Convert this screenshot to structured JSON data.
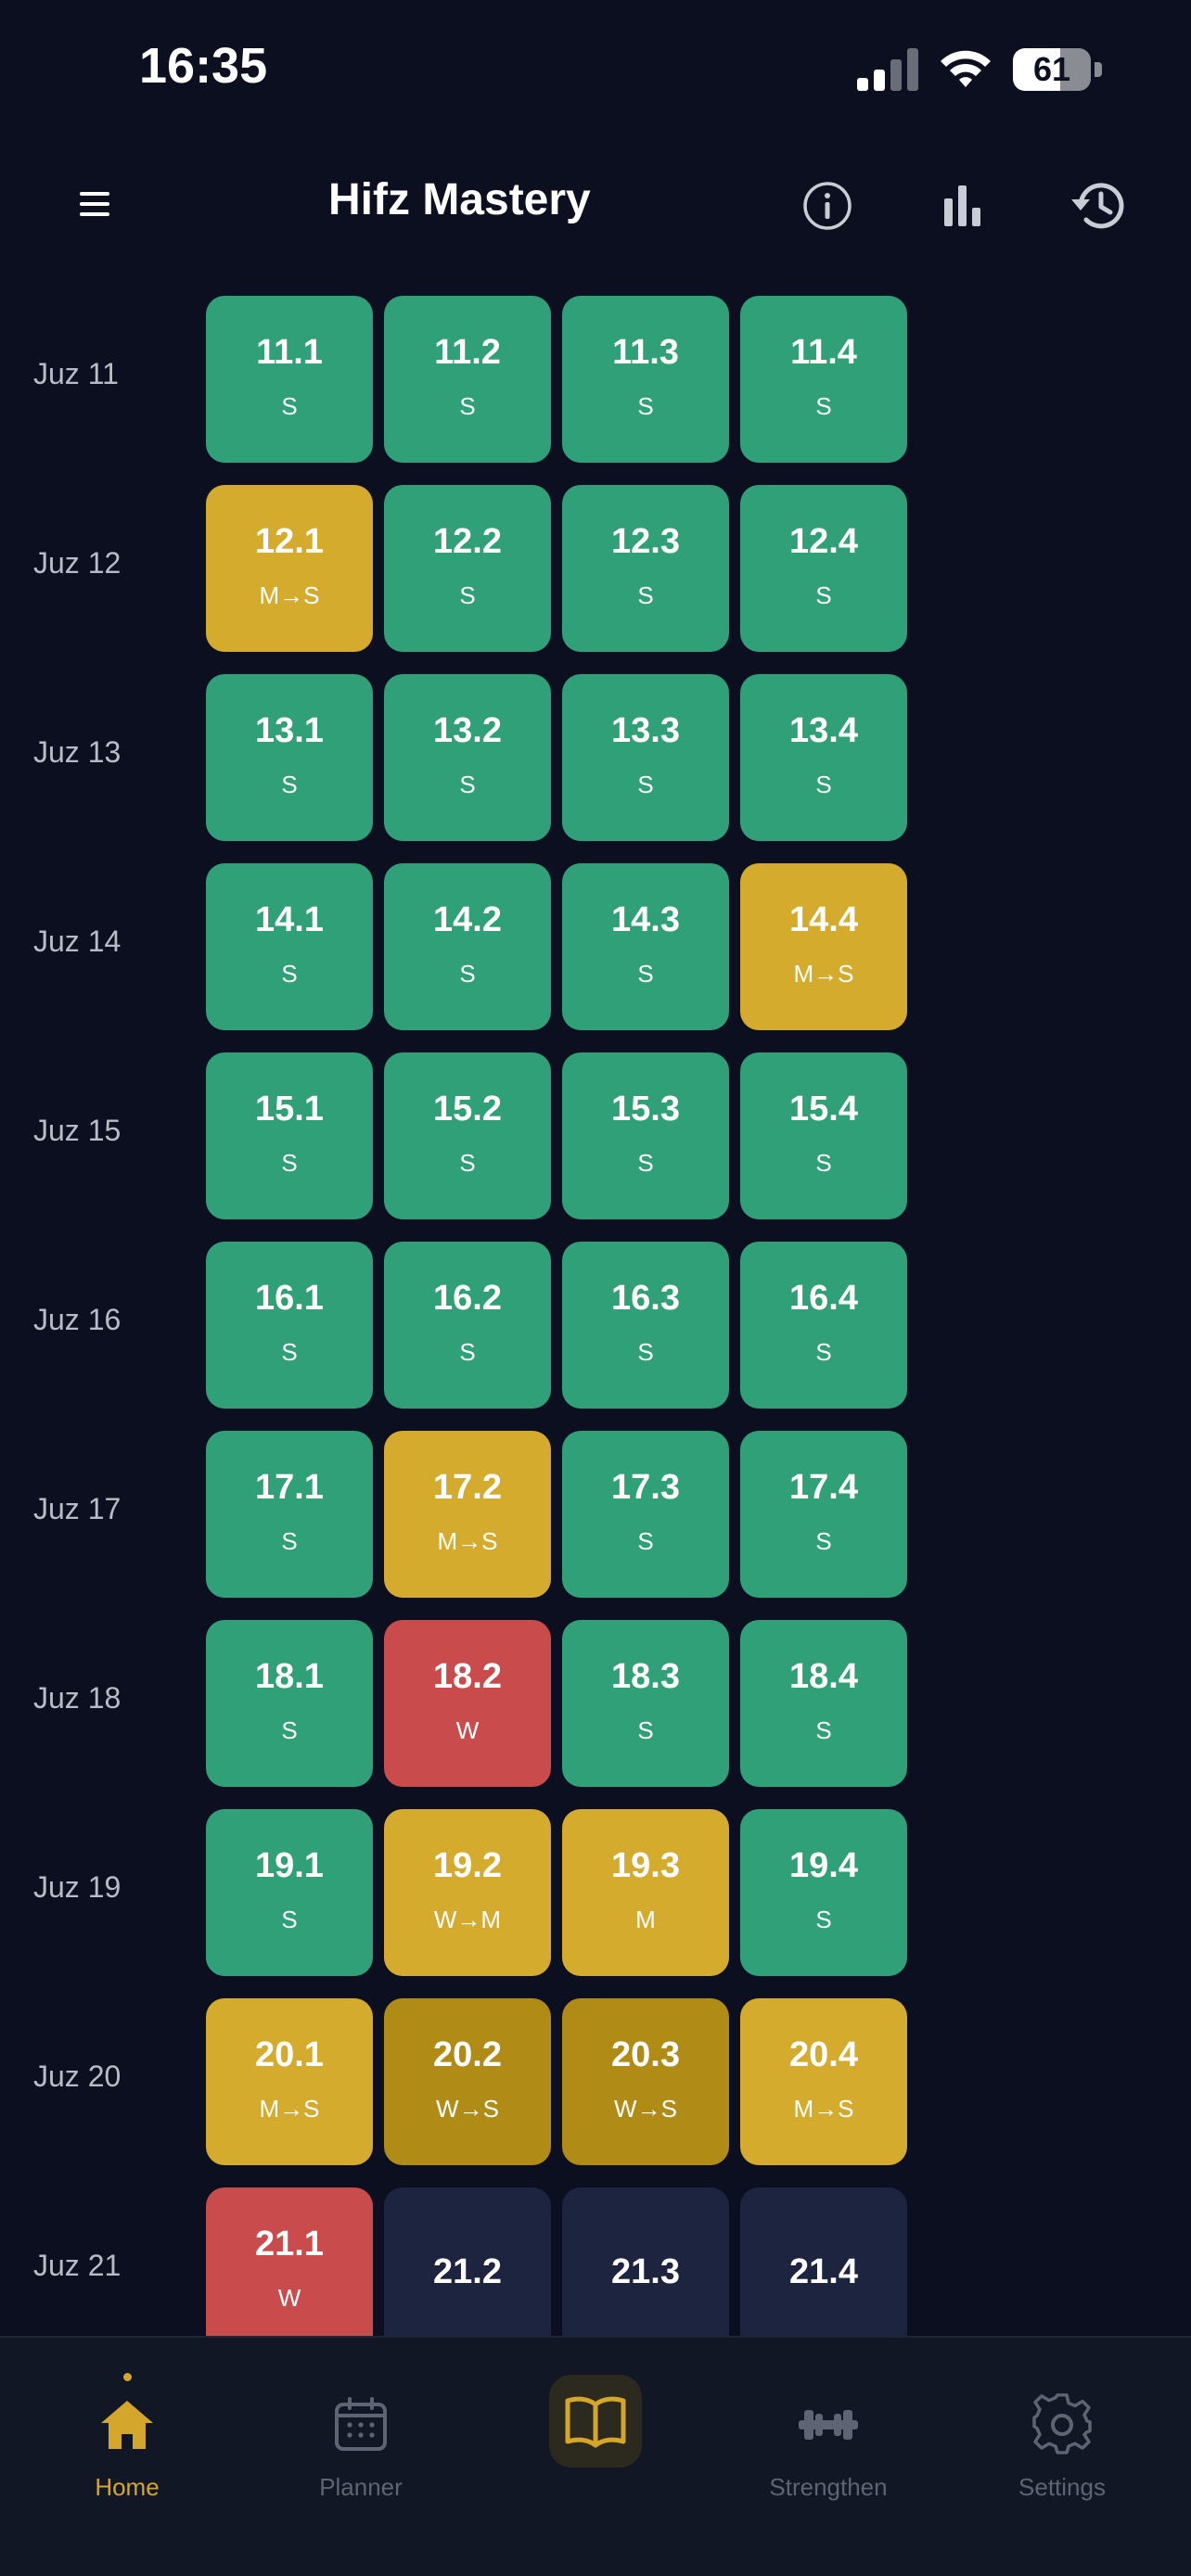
{
  "status_bar": {
    "time": "16:35",
    "battery": "61",
    "battery_level": 0.61
  },
  "header": {
    "title": "Hifz Mastery"
  },
  "colors": {
    "strong": "#2fa077",
    "medium": "#d4ab2d",
    "transition_weak": "#b08b16",
    "weak": "#c94b4b",
    "empty": "#1c243f",
    "accent": "#d4a72c",
    "background": "#0c0f1f"
  },
  "rows": [
    {
      "label": "Juz 11",
      "cells": [
        {
          "num": "11.1",
          "status": "S",
          "tone": "strong"
        },
        {
          "num": "11.2",
          "status": "S",
          "tone": "strong"
        },
        {
          "num": "11.3",
          "status": "S",
          "tone": "strong"
        },
        {
          "num": "11.4",
          "status": "S",
          "tone": "strong"
        }
      ]
    },
    {
      "label": "Juz 12",
      "cells": [
        {
          "num": "12.1",
          "status": "M→S",
          "tone": "medium"
        },
        {
          "num": "12.2",
          "status": "S",
          "tone": "strong"
        },
        {
          "num": "12.3",
          "status": "S",
          "tone": "strong"
        },
        {
          "num": "12.4",
          "status": "S",
          "tone": "strong"
        }
      ]
    },
    {
      "label": "Juz 13",
      "cells": [
        {
          "num": "13.1",
          "status": "S",
          "tone": "strong"
        },
        {
          "num": "13.2",
          "status": "S",
          "tone": "strong"
        },
        {
          "num": "13.3",
          "status": "S",
          "tone": "strong"
        },
        {
          "num": "13.4",
          "status": "S",
          "tone": "strong"
        }
      ]
    },
    {
      "label": "Juz 14",
      "cells": [
        {
          "num": "14.1",
          "status": "S",
          "tone": "strong"
        },
        {
          "num": "14.2",
          "status": "S",
          "tone": "strong"
        },
        {
          "num": "14.3",
          "status": "S",
          "tone": "strong"
        },
        {
          "num": "14.4",
          "status": "M→S",
          "tone": "medium"
        }
      ]
    },
    {
      "label": "Juz 15",
      "cells": [
        {
          "num": "15.1",
          "status": "S",
          "tone": "strong"
        },
        {
          "num": "15.2",
          "status": "S",
          "tone": "strong"
        },
        {
          "num": "15.3",
          "status": "S",
          "tone": "strong"
        },
        {
          "num": "15.4",
          "status": "S",
          "tone": "strong"
        }
      ]
    },
    {
      "label": "Juz 16",
      "cells": [
        {
          "num": "16.1",
          "status": "S",
          "tone": "strong"
        },
        {
          "num": "16.2",
          "status": "S",
          "tone": "strong"
        },
        {
          "num": "16.3",
          "status": "S",
          "tone": "strong"
        },
        {
          "num": "16.4",
          "status": "S",
          "tone": "strong"
        }
      ]
    },
    {
      "label": "Juz 17",
      "cells": [
        {
          "num": "17.1",
          "status": "S",
          "tone": "strong"
        },
        {
          "num": "17.2",
          "status": "M→S",
          "tone": "medium"
        },
        {
          "num": "17.3",
          "status": "S",
          "tone": "strong"
        },
        {
          "num": "17.4",
          "status": "S",
          "tone": "strong"
        }
      ]
    },
    {
      "label": "Juz 18",
      "cells": [
        {
          "num": "18.1",
          "status": "S",
          "tone": "strong"
        },
        {
          "num": "18.2",
          "status": "W",
          "tone": "weak"
        },
        {
          "num": "18.3",
          "status": "S",
          "tone": "strong"
        },
        {
          "num": "18.4",
          "status": "S",
          "tone": "strong"
        }
      ]
    },
    {
      "label": "Juz 19",
      "cells": [
        {
          "num": "19.1",
          "status": "S",
          "tone": "strong"
        },
        {
          "num": "19.2",
          "status": "W→M",
          "tone": "medium"
        },
        {
          "num": "19.3",
          "status": "M",
          "tone": "medium"
        },
        {
          "num": "19.4",
          "status": "S",
          "tone": "strong"
        }
      ]
    },
    {
      "label": "Juz 20",
      "cells": [
        {
          "num": "20.1",
          "status": "M→S",
          "tone": "medium"
        },
        {
          "num": "20.2",
          "status": "W→S",
          "tone": "transition_weak"
        },
        {
          "num": "20.3",
          "status": "W→S",
          "tone": "transition_weak"
        },
        {
          "num": "20.4",
          "status": "M→S",
          "tone": "medium"
        }
      ]
    },
    {
      "label": "Juz 21",
      "cells": [
        {
          "num": "21.1",
          "status": "W",
          "tone": "weak"
        },
        {
          "num": "21.2",
          "status": "",
          "tone": "empty"
        },
        {
          "num": "21.3",
          "status": "",
          "tone": "empty"
        },
        {
          "num": "21.4",
          "status": "",
          "tone": "empty"
        }
      ]
    }
  ],
  "nav": {
    "home": "Home",
    "planner": "Planner",
    "strengthen": "Strengthen",
    "settings": "Settings"
  },
  "icons": {
    "menu": "menu-icon",
    "info": "info-icon",
    "stats": "bar-chart-icon",
    "history": "history-icon",
    "home": "house-icon",
    "planner": "calendar-icon",
    "read": "open-book-icon",
    "strengthen": "dumbbell-icon",
    "settings": "gear-icon"
  }
}
